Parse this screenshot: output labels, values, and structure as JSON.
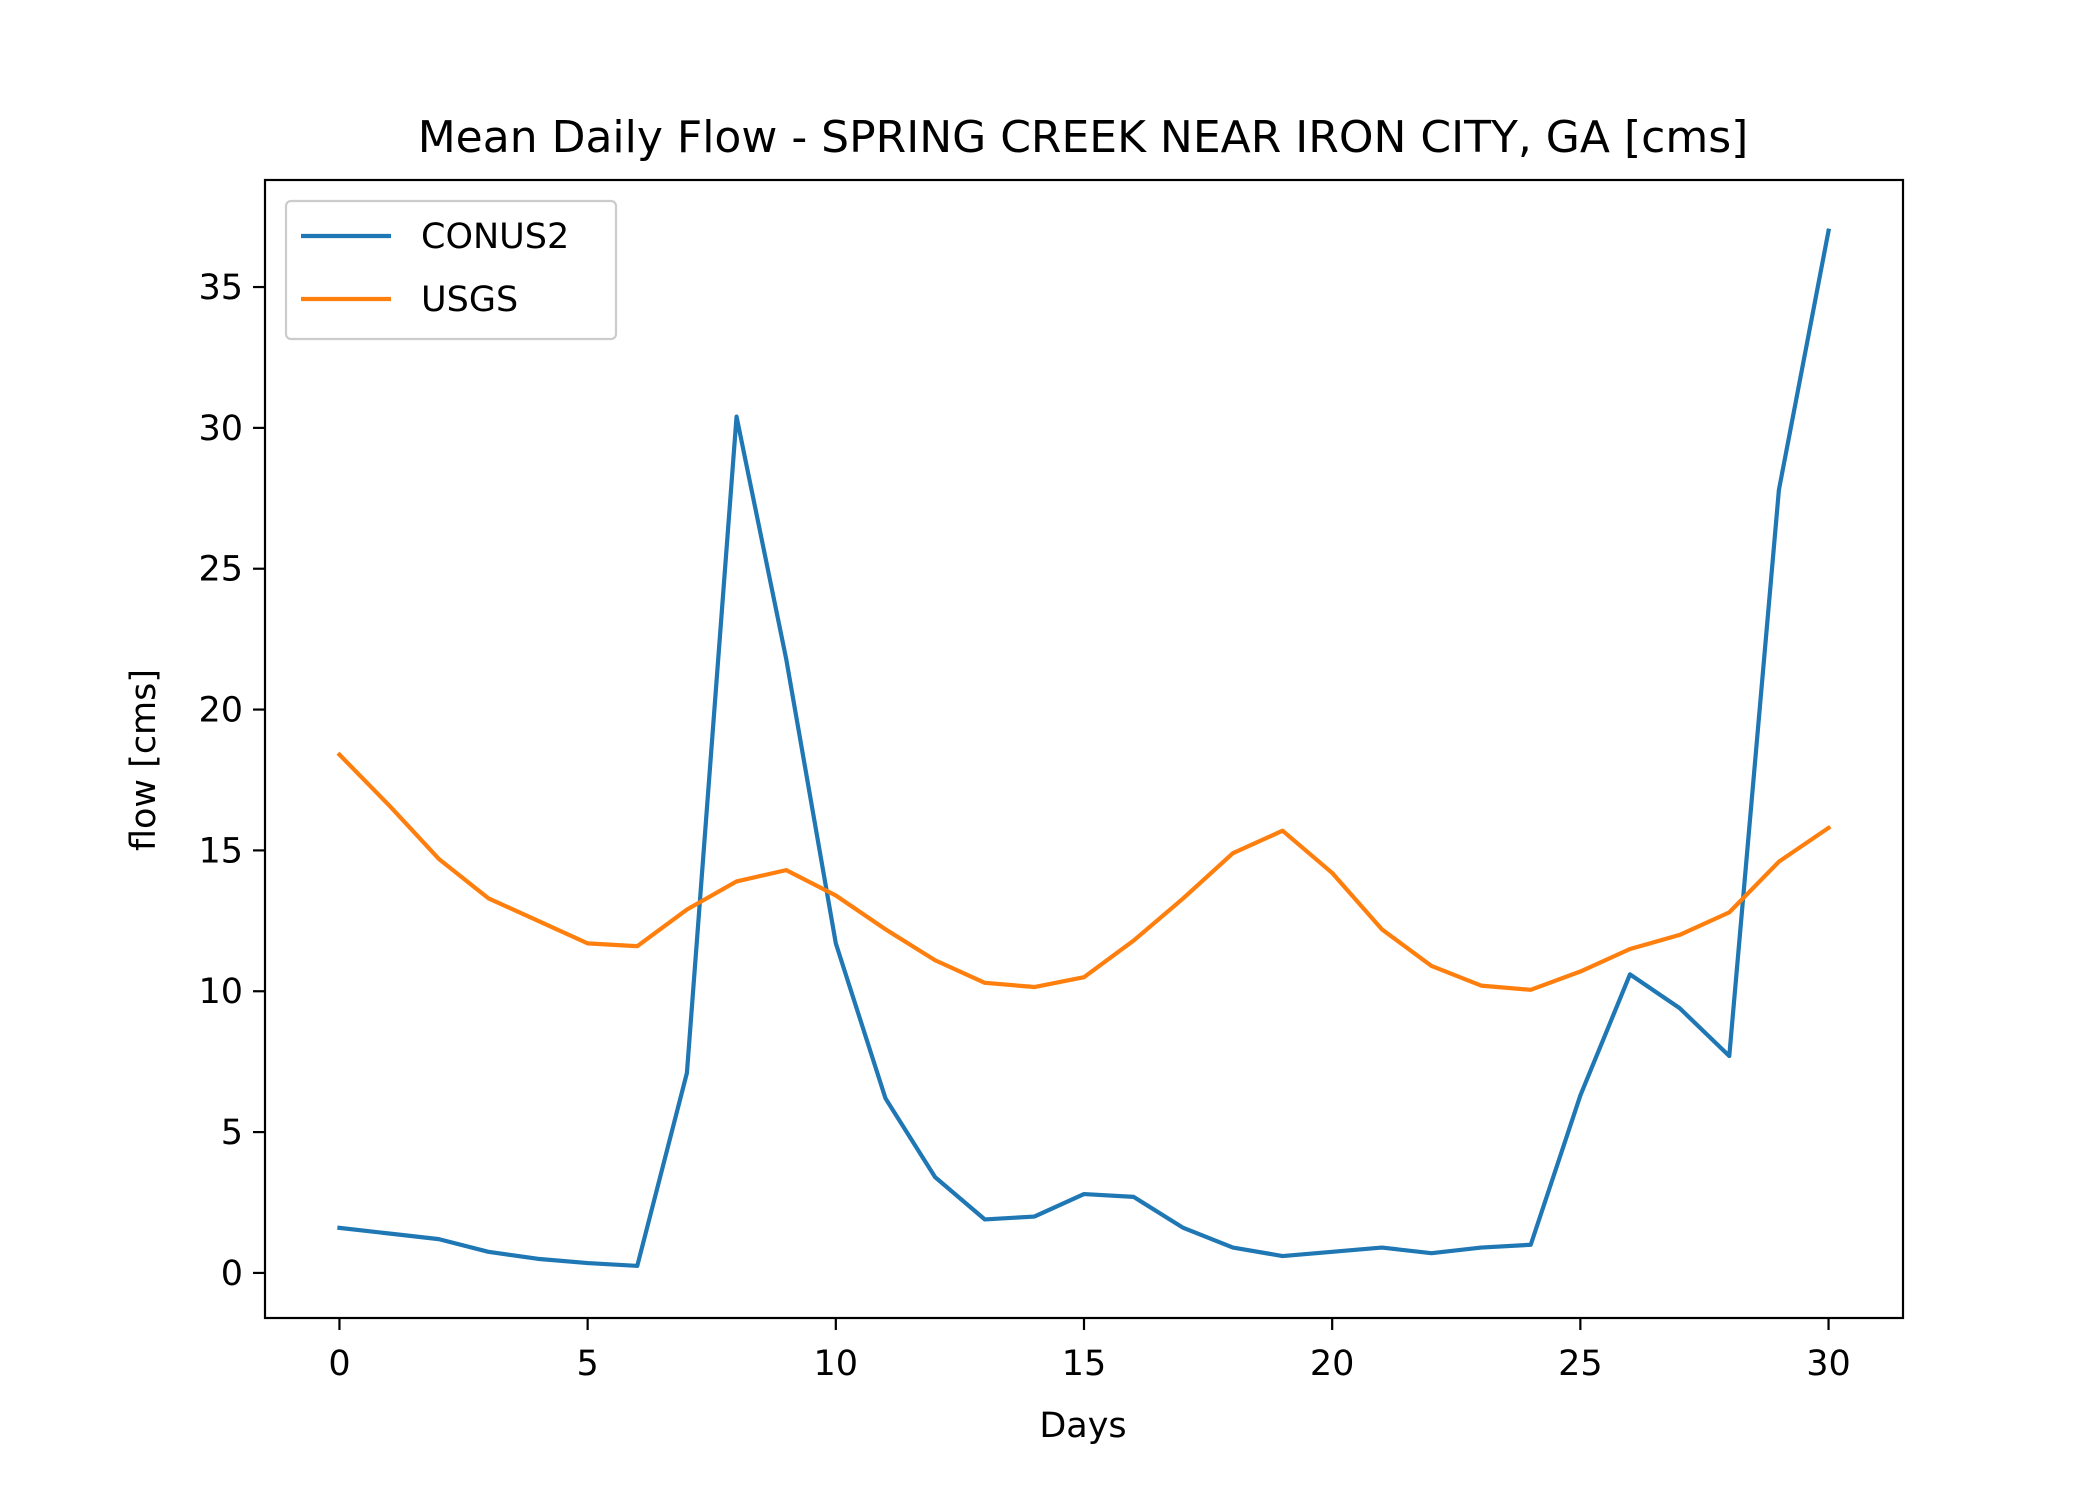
{
  "chart_data": {
    "type": "line",
    "title": "Mean Daily Flow - SPRING CREEK NEAR IRON CITY, GA [cms]",
    "xlabel": "Days",
    "ylabel": "flow [cms]",
    "xlim": [
      -1.5,
      31.5
    ],
    "ylim": [
      -1.6,
      38.8
    ],
    "xticks": [
      0,
      5,
      10,
      15,
      20,
      25,
      30
    ],
    "yticks": [
      0,
      5,
      10,
      15,
      20,
      25,
      30,
      35
    ],
    "grid": false,
    "legend_position": "upper left",
    "x": [
      0,
      1,
      2,
      3,
      4,
      5,
      6,
      7,
      8,
      9,
      10,
      11,
      12,
      13,
      14,
      15,
      16,
      17,
      18,
      19,
      20,
      21,
      22,
      23,
      24,
      25,
      26,
      27,
      28,
      29,
      30
    ],
    "series": [
      {
        "name": "CONUS2",
        "color": "#1f77b4",
        "values": [
          1.6,
          1.4,
          1.2,
          0.75,
          0.5,
          0.35,
          0.25,
          7.1,
          30.4,
          21.8,
          11.7,
          6.2,
          3.4,
          1.9,
          2.0,
          2.8,
          2.7,
          1.6,
          0.9,
          0.6,
          0.75,
          0.9,
          0.7,
          0.9,
          1.0,
          6.3,
          10.6,
          9.4,
          7.7,
          27.8,
          37.0
        ]
      },
      {
        "name": "USGS",
        "color": "#ff7f0e",
        "values": [
          18.4,
          16.6,
          14.7,
          13.3,
          12.5,
          11.7,
          11.6,
          12.9,
          13.9,
          14.3,
          13.4,
          12.2,
          11.1,
          10.3,
          10.15,
          10.5,
          11.8,
          13.3,
          14.9,
          15.7,
          14.2,
          12.2,
          10.9,
          10.2,
          10.05,
          10.7,
          11.5,
          12.0,
          12.8,
          14.6,
          15.8
        ]
      }
    ]
  }
}
